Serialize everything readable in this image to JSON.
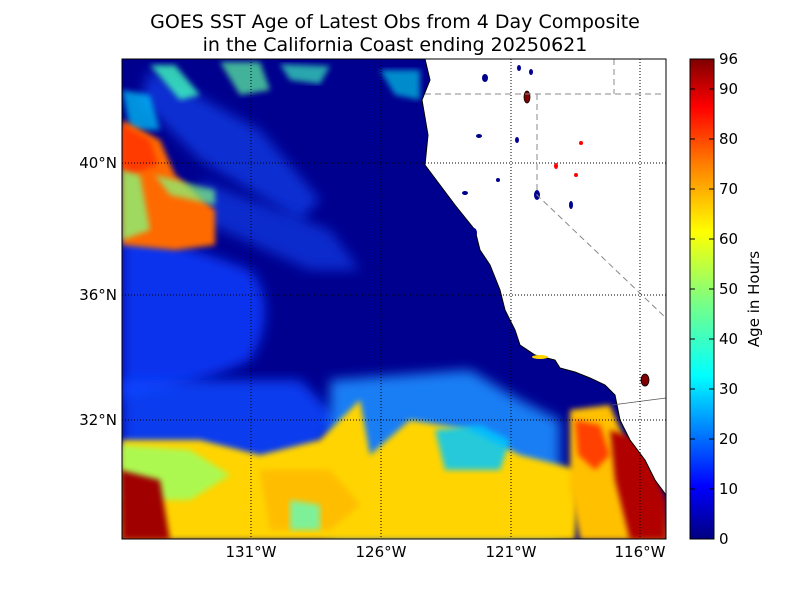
{
  "title": {
    "line1": "GOES SST Age of Latest Obs from 4 Day Composite",
    "line2": "in the California Coast ending 20250621"
  },
  "map": {
    "lat_labels": [
      "40°N",
      "36°N",
      "32°N"
    ],
    "lon_labels": [
      "131°W",
      "126°W",
      "121°W",
      "116°W"
    ]
  },
  "colorbar": {
    "label": "Age in Hours",
    "ticks": [
      "0",
      "10",
      "20",
      "30",
      "40",
      "50",
      "60",
      "70",
      "80",
      "90",
      "96"
    ],
    "colors": [
      "#00007f",
      "#0000ff",
      "#007fff",
      "#00ffff",
      "#7fff7f",
      "#ffff00",
      "#ff7f00",
      "#ff0000",
      "#7f0000"
    ]
  }
}
